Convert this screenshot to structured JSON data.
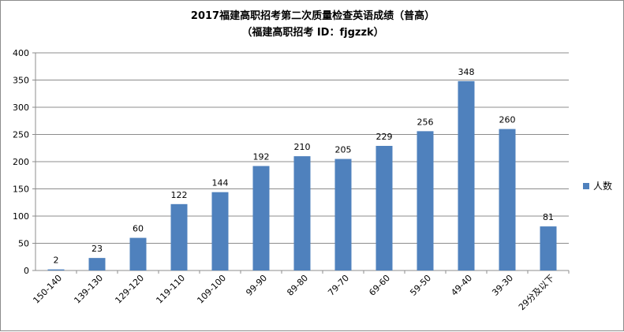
{
  "chart_data": {
    "type": "bar",
    "title": "2017福建高职招考第二次质量检查英语成绩（普高）",
    "subtitle": "（福建高职招考 ID：fjgzzk）",
    "categories": [
      "150-140",
      "139-130",
      "129-120",
      "119-110",
      "109-100",
      "99-90",
      "89-80",
      "79-70",
      "69-60",
      "59-50",
      "49-40",
      "39-30",
      "29分及以下"
    ],
    "series": [
      {
        "name": "人数",
        "values": [
          2,
          23,
          60,
          122,
          144,
          192,
          210,
          205,
          229,
          256,
          348,
          260,
          81
        ],
        "color": "#4f81bd"
      }
    ],
    "xlabel": "",
    "ylabel": "",
    "ylim": [
      0,
      400
    ],
    "yticks": [
      0,
      50,
      100,
      150,
      200,
      250,
      300,
      350,
      400
    ],
    "grid": true,
    "legend": "right",
    "data_labels": true
  }
}
